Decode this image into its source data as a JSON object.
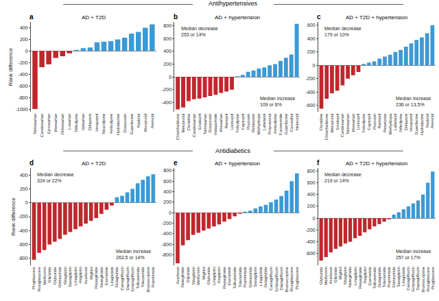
{
  "group_titles": [
    "Antihypertensives",
    "Antidiabetics"
  ],
  "chart_data": [
    {
      "type": "bar",
      "panel": "a",
      "title": "AD + T2D",
      "ylabel": "Rank difference",
      "categories": [
        "Telmisartan",
        "Candesartan",
        "Eprosartan",
        "Irbesartan",
        "Olmesartan",
        "Losartan",
        "Nifedipine",
        "Valsartan",
        "Diltiazem",
        "Verapamil",
        "Nicardipine",
        "Amlodipine",
        "Hydralazine",
        "Doxazosin",
        "Guanfacine",
        "Nadolol",
        "Bisoprolol",
        "Atenolol"
      ],
      "values": [
        -1000,
        -280,
        -230,
        -120,
        -90,
        -40,
        20,
        50,
        60,
        150,
        160,
        170,
        200,
        230,
        300,
        330,
        400,
        460
      ],
      "colors": [
        "#c0272d",
        "#c0272d",
        "#c0272d",
        "#c0272d",
        "#c0272d",
        "#c0272d",
        "#3b9ad6",
        "#3b9ad6",
        "#3b9ad6",
        "#3b9ad6",
        "#3b9ad6",
        "#3b9ad6",
        "#3b9ad6",
        "#3b9ad6",
        "#3b9ad6",
        "#3b9ad6",
        "#3b9ad6",
        "#3b9ad6"
      ],
      "ylim": [
        -1050,
        500
      ],
      "yticks": [
        -1000,
        -800,
        -600,
        -400,
        -200,
        0,
        200,
        400
      ]
    },
    {
      "type": "bar",
      "panel": "b",
      "title": "AD + hypertension",
      "categories": [
        "Chlorthalidone",
        "Metoprolol",
        "Clonidine",
        "Candesartan",
        "Enalapril",
        "Telmisartan",
        "Doxazosin",
        "Indapamide",
        "Irbesartan",
        "Ramipril",
        "Lisinopril",
        "Felodipine",
        "Captopril",
        "Prazosin",
        "Reserpine",
        "Methyldopa",
        "Labetalol",
        "Propranolol",
        "Amlodipine",
        "Furosemide",
        "Guanfacine",
        "Carvedilol",
        "Nebivolol"
      ],
      "values": [
        -510,
        -480,
        -380,
        -350,
        -340,
        -320,
        -300,
        -280,
        -250,
        -230,
        -200,
        10,
        30,
        80,
        100,
        130,
        150,
        180,
        200,
        250,
        300,
        350,
        830
      ],
      "colors": [
        "#c0272d",
        "#c0272d",
        "#c0272d",
        "#c0272d",
        "#c0272d",
        "#c0272d",
        "#c0272d",
        "#c0272d",
        "#c0272d",
        "#c0272d",
        "#c0272d",
        "#3b9ad6",
        "#3b9ad6",
        "#3b9ad6",
        "#3b9ad6",
        "#3b9ad6",
        "#3b9ad6",
        "#3b9ad6",
        "#3b9ad6",
        "#3b9ad6",
        "#3b9ad6",
        "#3b9ad6",
        "#3b9ad6"
      ],
      "ylim": [
        -550,
        860
      ],
      "yticks": [
        -400,
        -200,
        0,
        200,
        400,
        600,
        800
      ],
      "annotations": [
        [
          "Median decrease",
          "253 or 14%"
        ],
        [
          "Median increase",
          "109 or 8%"
        ]
      ]
    },
    {
      "type": "bar",
      "panel": "c",
      "title": "AD + T2D + hypertension",
      "categories": [
        "Clonidine",
        "Chlorthalidone",
        "Metoprolol",
        "Enalapril",
        "Candesartan",
        "Telmisartan",
        "Irbesartan",
        "Lisinopril",
        "Felodipine",
        "Captopril",
        "Prazosin",
        "Ramipril",
        "Reserpine",
        "Methyldopa",
        "Labetalol",
        "Nifedipine",
        "Diltiazem",
        "Verapamil",
        "Guanfacine",
        "Hydralazine",
        "Nadolol",
        "Atenolol"
      ],
      "values": [
        -650,
        -500,
        -420,
        -380,
        -300,
        -200,
        -150,
        -100,
        20,
        40,
        60,
        100,
        130,
        160,
        200,
        230,
        280,
        330,
        380,
        420,
        480,
        600
      ],
      "colors": [
        "#c0272d",
        "#c0272d",
        "#c0272d",
        "#c0272d",
        "#c0272d",
        "#c0272d",
        "#c0272d",
        "#c0272d",
        "#3b9ad6",
        "#3b9ad6",
        "#3b9ad6",
        "#3b9ad6",
        "#3b9ad6",
        "#3b9ad6",
        "#3b9ad6",
        "#3b9ad6",
        "#3b9ad6",
        "#3b9ad6",
        "#3b9ad6",
        "#3b9ad6",
        "#3b9ad6",
        "#3b9ad6"
      ],
      "ylim": [
        -700,
        650
      ],
      "yticks": [
        -600,
        -400,
        -200,
        0,
        200,
        400,
        600
      ],
      "annotations": [
        [
          "Median decrease",
          "179 or 10%"
        ],
        [
          "Median increase",
          "236 or 13.5%"
        ]
      ]
    },
    {
      "type": "bar",
      "panel": "d",
      "title": "AD + T2D",
      "ylabel": "Rank difference",
      "categories": [
        "Pioglitazone",
        "Rosiglitazone",
        "Metformin",
        "Glipizide",
        "Glyburide",
        "Glimepiride",
        "Sitagliptin",
        "Saxagliptin",
        "Linagliptin",
        "Alogliptin",
        "Acarbose",
        "Miglitol",
        "Repaglinide",
        "Nateglinide",
        "Exenatide",
        "Liraglutide",
        "Dulaglutide",
        "Canagliflozin",
        "Dapagliflozin",
        "Empagliflozin",
        "Tolbutamide",
        "Tolazamide",
        "Bromocriptine",
        "Pramlintide"
      ],
      "values": [
        -820,
        -720,
        -680,
        -600,
        -560,
        -520,
        -460,
        -420,
        -380,
        -340,
        -300,
        -260,
        -220,
        -160,
        -100,
        -40,
        80,
        100,
        150,
        200,
        280,
        330,
        380,
        410
      ],
      "colors": [
        "#c0272d",
        "#c0272d",
        "#c0272d",
        "#c0272d",
        "#c0272d",
        "#c0272d",
        "#c0272d",
        "#c0272d",
        "#c0272d",
        "#c0272d",
        "#c0272d",
        "#c0272d",
        "#c0272d",
        "#c0272d",
        "#c0272d",
        "#c0272d",
        "#3b9ad6",
        "#3b9ad6",
        "#3b9ad6",
        "#3b9ad6",
        "#3b9ad6",
        "#3b9ad6",
        "#3b9ad6",
        "#3b9ad6"
      ],
      "ylim": [
        -900,
        500
      ],
      "yticks": [
        -800,
        -600,
        -400,
        -200,
        0,
        200,
        400
      ],
      "annotations": [
        [
          "Median decrease",
          "324 or 22%"
        ],
        [
          "Median increase",
          "263.5 or 14%"
        ]
      ]
    },
    {
      "type": "bar",
      "panel": "e",
      "title": "AD + hypertension",
      "categories": [
        "Acarbose",
        "Nateglinide",
        "Glipizide",
        "Sitagliptin",
        "Metformin",
        "Miglitol",
        "Glyburide",
        "Linagliptin",
        "Alogliptin",
        "Repaglinide",
        "Exenatide",
        "Tolbutamide",
        "Tolazamide",
        "Pramlintide",
        "Glimepiride",
        "Saxagliptin",
        "Liraglutide",
        "Dulaglutide",
        "Canagliflozin",
        "Empagliflozin",
        "Dapagliflozin",
        "Bromocriptine",
        "Rosiglitazone",
        "Pioglitazone"
      ],
      "values": [
        -960,
        -620,
        -520,
        -420,
        -380,
        -340,
        -300,
        -260,
        -220,
        -170,
        -120,
        -70,
        -20,
        20,
        40,
        80,
        120,
        150,
        200,
        250,
        320,
        420,
        600,
        750
      ],
      "colors": [
        "#c0272d",
        "#c0272d",
        "#c0272d",
        "#c0272d",
        "#c0272d",
        "#c0272d",
        "#c0272d",
        "#c0272d",
        "#c0272d",
        "#c0272d",
        "#c0272d",
        "#c0272d",
        "#c0272d",
        "#3b9ad6",
        "#3b9ad6",
        "#3b9ad6",
        "#3b9ad6",
        "#3b9ad6",
        "#3b9ad6",
        "#3b9ad6",
        "#3b9ad6",
        "#3b9ad6",
        "#3b9ad6",
        "#3b9ad6"
      ],
      "ylim": [
        -1000,
        850
      ],
      "yticks": [
        -800,
        -600,
        -400,
        -200,
        0,
        200,
        400,
        600,
        800
      ]
    },
    {
      "type": "bar",
      "panel": "f",
      "title": "AD + T2D + hypertension",
      "categories": [
        "Glyburide",
        "Metformin",
        "Acarbose",
        "Glipizide",
        "Miglitol",
        "Sitagliptin",
        "Nateglinide",
        "Linagliptin",
        "Repaglinide",
        "Alogliptin",
        "Exenatide",
        "Tolbutamide",
        "Dulaglutide",
        "Tolazamide",
        "Pramlintide",
        "Glimepiride",
        "Saxagliptin",
        "Liraglutide",
        "Canagliflozin",
        "Empagliflozin",
        "Dapagliflozin",
        "Bromocriptine",
        "Rosiglitazone",
        "Pioglitazone"
      ],
      "values": [
        -720,
        -660,
        -580,
        -520,
        -480,
        -430,
        -400,
        -340,
        -300,
        -240,
        -190,
        -140,
        -100,
        -60,
        -20,
        60,
        100,
        150,
        200,
        250,
        300,
        400,
        600,
        790
      ],
      "colors": [
        "#c0272d",
        "#c0272d",
        "#c0272d",
        "#c0272d",
        "#c0272d",
        "#c0272d",
        "#c0272d",
        "#c0272d",
        "#c0272d",
        "#c0272d",
        "#c0272d",
        "#c0272d",
        "#c0272d",
        "#c0272d",
        "#c0272d",
        "#3b9ad6",
        "#3b9ad6",
        "#3b9ad6",
        "#3b9ad6",
        "#3b9ad6",
        "#3b9ad6",
        "#3b9ad6",
        "#3b9ad6",
        "#3b9ad6"
      ],
      "ylim": [
        -800,
        850
      ],
      "yticks": [
        -600,
        -400,
        -200,
        0,
        200,
        400,
        600,
        800
      ],
      "annotations": [
        [
          "Median decrease",
          "219 or 14%"
        ],
        [
          "Median increase",
          "257 or 17%"
        ]
      ]
    }
  ]
}
